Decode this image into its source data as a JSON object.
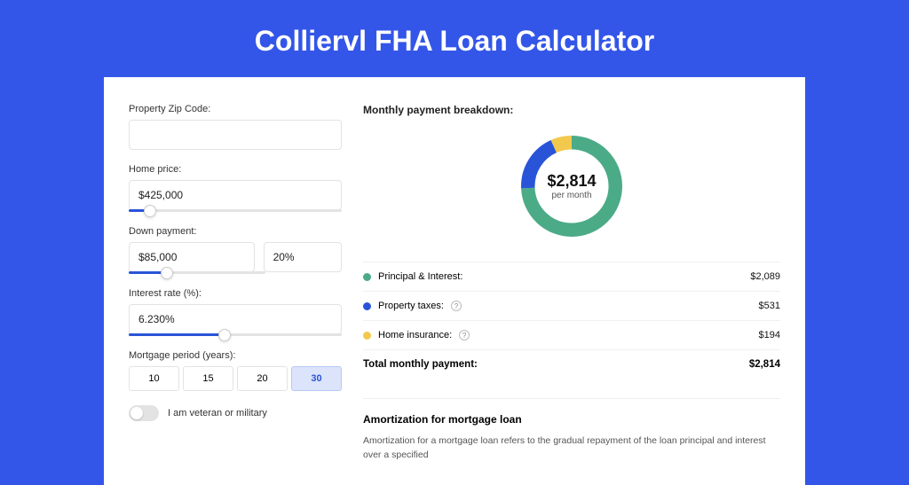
{
  "colors": {
    "page_bg": "#3356e8",
    "card_bg": "#ffffff",
    "border": "#e3e3e3",
    "slider_fill": "#2a54d8",
    "active_tab_bg": "#dbe4fb",
    "active_tab_border": "#b7c8f5",
    "active_tab_text": "#2a54d8"
  },
  "title": "Colliervl FHA Loan Calculator",
  "form": {
    "zip": {
      "label": "Property Zip Code:",
      "value": ""
    },
    "home_price": {
      "label": "Home price:",
      "value": "$425,000",
      "slider_pct": 10
    },
    "down_payment": {
      "label": "Down payment:",
      "value": "$85,000",
      "pct": "20%",
      "slider_pct": 28
    },
    "interest_rate": {
      "label": "Interest rate (%):",
      "value": "6.230%",
      "slider_pct": 45
    },
    "period": {
      "label": "Mortgage period (years):",
      "options": [
        "10",
        "15",
        "20",
        "30"
      ],
      "active": "30"
    },
    "veteran": {
      "label": "I am veteran or military",
      "on": false
    }
  },
  "breakdown": {
    "title": "Monthly payment breakdown:",
    "chart": {
      "type": "donut",
      "center_amount": "$2,814",
      "center_label": "per month",
      "stroke_width": 20,
      "segments": [
        {
          "label": "Principal & Interest",
          "value": 2089,
          "pct": 74.2,
          "color": "#4cab87"
        },
        {
          "label": "Property taxes",
          "value": 531,
          "pct": 18.9,
          "color": "#2a54d8"
        },
        {
          "label": "Home insurance",
          "value": 194,
          "pct": 6.9,
          "color": "#f2c94c"
        }
      ]
    },
    "items": [
      {
        "label": "Principal & Interest:",
        "value": "$2,089",
        "color": "#4cab87",
        "has_info": false
      },
      {
        "label": "Property taxes:",
        "value": "$531",
        "color": "#2a54d8",
        "has_info": true
      },
      {
        "label": "Home insurance:",
        "value": "$194",
        "color": "#f2c94c",
        "has_info": true
      }
    ],
    "total": {
      "label": "Total monthly payment:",
      "value": "$2,814"
    }
  },
  "amortization": {
    "title": "Amortization for mortgage loan",
    "text": "Amortization for a mortgage loan refers to the gradual repayment of the loan principal and interest over a specified"
  }
}
